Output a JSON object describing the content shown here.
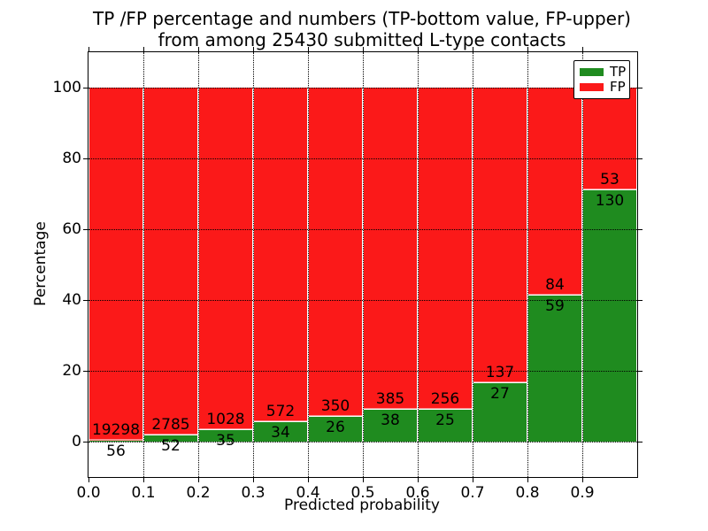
{
  "title": {
    "line1": "TP /FP percentage and numbers (TP-bottom value, FP-upper)",
    "line2": "from among 25430 submitted L-type contacts"
  },
  "chart_data": {
    "type": "bar",
    "stacked": true,
    "normalized": "each bar scaled to 100%",
    "title": "TP /FP percentage and numbers (TP-bottom value, FP-upper) from among 25430 submitted L-type contacts",
    "total_contacts": 25430,
    "xlabel": "Predicted probability",
    "ylabel": "Percentage",
    "bin_edges": [
      0.0,
      0.1,
      0.2,
      0.3,
      0.4,
      0.5,
      0.6,
      0.7,
      0.8,
      0.9,
      1.0
    ],
    "categories": [
      "0.0-0.1",
      "0.1-0.2",
      "0.2-0.3",
      "0.3-0.4",
      "0.4-0.5",
      "0.5-0.6",
      "0.6-0.7",
      "0.7-0.8",
      "0.8-0.9",
      "0.9-1.0"
    ],
    "series": [
      {
        "name": "TP",
        "color": "#1f8b1f",
        "values": [
          56,
          52,
          35,
          34,
          26,
          38,
          25,
          27,
          59,
          130
        ]
      },
      {
        "name": "FP",
        "color": "#fb1919",
        "values": [
          19298,
          2785,
          1028,
          572,
          350,
          385,
          256,
          137,
          84,
          53
        ]
      }
    ],
    "tp_percent": [
      0.29,
      1.83,
      3.29,
      5.61,
      6.91,
      8.98,
      8.9,
      16.46,
      41.26,
      71.04
    ],
    "x_tick_labels": [
      "0.0",
      "0.1",
      "0.2",
      "0.3",
      "0.4",
      "0.5",
      "0.6",
      "0.7",
      "0.8",
      "0.9"
    ],
    "y_tick_labels": [
      "0",
      "20",
      "40",
      "60",
      "80",
      "100"
    ],
    "y_ticks": [
      0,
      20,
      40,
      60,
      80,
      100
    ],
    "ylim": [
      -10,
      110
    ],
    "xlim": [
      0.0,
      1.0
    ],
    "grid": "dotted, both axes",
    "legend": {
      "position": "upper right",
      "entries": [
        {
          "label": "TP",
          "color": "#1f8b1f"
        },
        {
          "label": "FP",
          "color": "#fb1919"
        }
      ]
    }
  }
}
